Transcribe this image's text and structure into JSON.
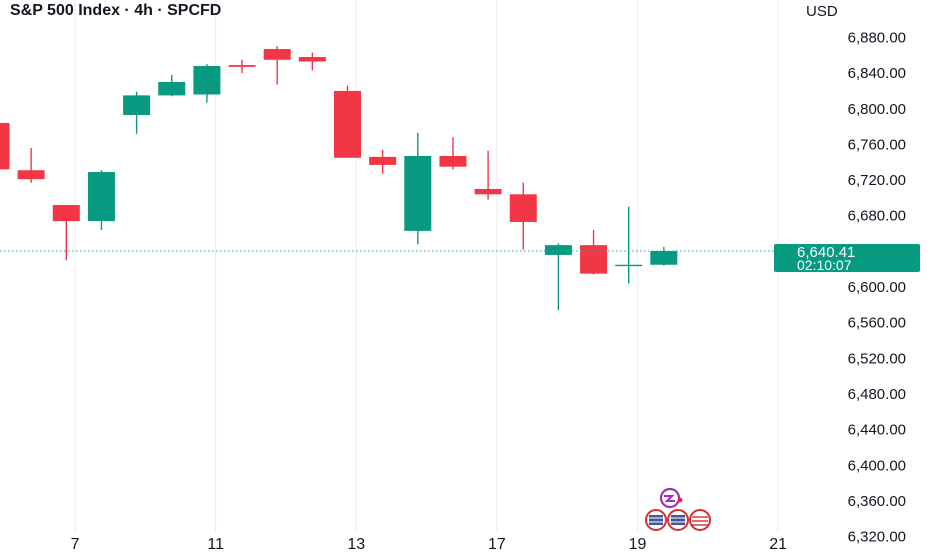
{
  "header": {
    "symbol_title": "S&P 500 Index · 4h · SPCFD",
    "currency": "USD"
  },
  "price_label": {
    "price": "6,640.41",
    "countdown": "02:10:07"
  },
  "colors": {
    "up": "#089981",
    "down": "#f23645",
    "grid": "#e9ebef",
    "axis_text": "#131722",
    "last_price_line": "#26a69a",
    "price_label_bg": "#089981"
  },
  "chart_data": {
    "type": "candlestick",
    "title": "S&P 500 Index · 4h · SPCFD",
    "xlabel": "",
    "ylabel": "",
    "ylim": [
      6305,
      6922
    ],
    "y_ticks": [
      {
        "value": 6880,
        "label": "6,880.00"
      },
      {
        "value": 6840,
        "label": "6,840.00"
      },
      {
        "value": 6800,
        "label": "6,800.00"
      },
      {
        "value": 6760,
        "label": "6,760.00"
      },
      {
        "value": 6720,
        "label": "6,720.00"
      },
      {
        "value": 6680,
        "label": "6,680.00"
      },
      {
        "value": 6600,
        "label": "6,600.00"
      },
      {
        "value": 6560,
        "label": "6,560.00"
      },
      {
        "value": 6520,
        "label": "6,520.00"
      },
      {
        "value": 6480,
        "label": "6,480.00"
      },
      {
        "value": 6440,
        "label": "6,440.00"
      },
      {
        "value": 6400,
        "label": "6,400.00"
      },
      {
        "value": 6360,
        "label": "6,360.00"
      },
      {
        "value": 6320,
        "label": "6,320.00"
      }
    ],
    "x_ticks": [
      {
        "pos": 1.75,
        "label": "7"
      },
      {
        "pos": 5.75,
        "label": "11"
      },
      {
        "pos": 9.75,
        "label": "13"
      },
      {
        "pos": 13.75,
        "label": "17"
      },
      {
        "pos": 17.75,
        "label": "19"
      },
      {
        "pos": 21.75,
        "label": "21"
      }
    ],
    "last_price": 6640.41,
    "candles": [
      {
        "i": -0.5,
        "o": 6784,
        "h": 6784,
        "l": 6732,
        "c": 6732
      },
      {
        "i": 0.5,
        "o": 6731,
        "h": 6756,
        "l": 6717,
        "c": 6721
      },
      {
        "i": 1.5,
        "o": 6692,
        "h": 6692,
        "l": 6630,
        "c": 6674
      },
      {
        "i": 2.5,
        "o": 6674,
        "h": 6731,
        "l": 6664,
        "c": 6729
      },
      {
        "i": 3.5,
        "o": 6793,
        "h": 6819,
        "l": 6772,
        "c": 6815
      },
      {
        "i": 4.5,
        "o": 6815,
        "h": 6838,
        "l": 6814,
        "c": 6830
      },
      {
        "i": 5.5,
        "o": 6816,
        "h": 6850,
        "l": 6807,
        "c": 6848
      },
      {
        "i": 6.5,
        "o": 6849,
        "h": 6855,
        "l": 6840,
        "c": 6847
      },
      {
        "i": 7.5,
        "o": 6867,
        "h": 6870,
        "l": 6827,
        "c": 6855
      },
      {
        "i": 8.5,
        "o": 6858,
        "h": 6863,
        "l": 6843,
        "c": 6853
      },
      {
        "i": 9.5,
        "o": 6820,
        "h": 6826,
        "l": 6745,
        "c": 6745
      },
      {
        "i": 10.5,
        "o": 6746,
        "h": 6754,
        "l": 6727,
        "c": 6737
      },
      {
        "i": 11.5,
        "o": 6663,
        "h": 6773,
        "l": 6648,
        "c": 6747
      },
      {
        "i": 12.5,
        "o": 6747,
        "h": 6768,
        "l": 6732,
        "c": 6735
      },
      {
        "i": 13.5,
        "o": 6710,
        "h": 6753,
        "l": 6698,
        "c": 6704
      },
      {
        "i": 14.5,
        "o": 6704,
        "h": 6717,
        "l": 6642,
        "c": 6673
      },
      {
        "i": 15.5,
        "o": 6636,
        "h": 6649,
        "l": 6574,
        "c": 6647
      },
      {
        "i": 16.5,
        "o": 6647,
        "h": 6664,
        "l": 6614,
        "c": 6615
      },
      {
        "i": 17.5,
        "o": 6625,
        "h": 6690,
        "l": 6604,
        "c": 6625
      },
      {
        "i": 18.5,
        "o": 6625,
        "h": 6645,
        "l": 6624,
        "c": 6640.41
      }
    ]
  }
}
